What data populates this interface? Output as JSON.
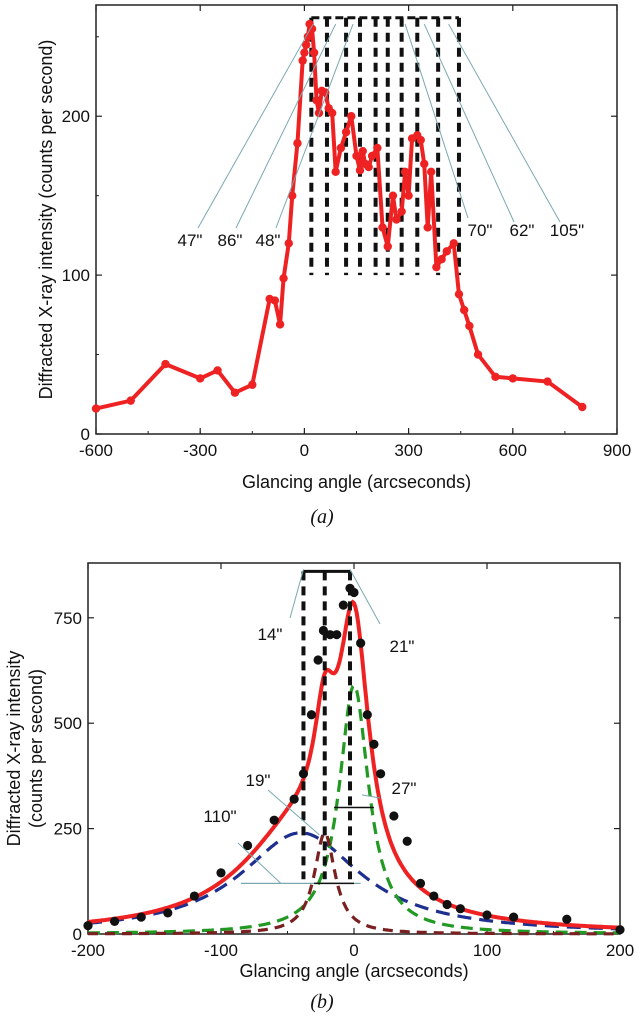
{
  "chart_data": [
    {
      "panel_label": "(a)",
      "type": "line",
      "xlabel": "Glancing angle (arcseconds)",
      "ylabel": "Diffracted X-ray intensity (counts per second)",
      "xlim": [
        -600,
        900
      ],
      "ylim": [
        0,
        270
      ],
      "xticks": [
        -600,
        -300,
        0,
        300,
        600,
        900
      ],
      "yticks": [
        0,
        100,
        200
      ],
      "grid": false,
      "series": [
        {
          "color": "#ee2222",
          "x": [
            -600,
            -500,
            -400,
            -300,
            -250,
            -200,
            -150,
            -100,
            -85,
            -70,
            -60,
            -45,
            -35,
            -20,
            -5,
            0,
            5,
            10,
            15,
            22,
            28,
            35,
            42,
            50,
            60,
            70,
            80,
            90,
            105,
            120,
            135,
            150,
            160,
            168,
            175,
            185,
            195,
            210,
            225,
            240,
            255,
            265,
            280,
            290,
            300,
            310,
            325,
            335,
            345,
            355,
            365,
            380,
            395,
            410,
            430,
            445,
            460,
            475,
            500,
            550,
            600,
            700,
            800
          ],
          "y": [
            16,
            21,
            44,
            35,
            40,
            26,
            31,
            85,
            84,
            69,
            98,
            120,
            150,
            183,
            235,
            240,
            245,
            250,
            258,
            255,
            240,
            210,
            202,
            216,
            215,
            205,
            202,
            165,
            180,
            190,
            200,
            175,
            166,
            178,
            170,
            168,
            175,
            180,
            130,
            118,
            150,
            135,
            140,
            165,
            150,
            186,
            188,
            185,
            170,
            130,
            165,
            105,
            110,
            115,
            120,
            88,
            78,
            68,
            50,
            36,
            35,
            33,
            17
          ]
        }
      ],
      "bracket_widths": [
        "47\"",
        "86\"",
        "48\"",
        "70\"",
        "62\"",
        "105\""
      ],
      "bracket_x": [
        20,
        65,
        120,
        160,
        205,
        240,
        280,
        325,
        385,
        445
      ]
    },
    {
      "panel_label": "(b)",
      "type": "line",
      "xlabel": "Glancing angle (arcseconds)",
      "ylabel": "Diffracted X-ray intensity (counts per second)",
      "xlim": [
        -200,
        200
      ],
      "ylim": [
        0,
        880
      ],
      "xticks": [
        -200,
        -100,
        0,
        100,
        200
      ],
      "yticks": [
        0,
        250,
        500,
        750
      ],
      "grid": false,
      "points": {
        "color": "#111111",
        "x": [
          -200,
          -180,
          -160,
          -140,
          -120,
          -100,
          -80,
          -60,
          -45,
          -38,
          -32,
          -27,
          -23,
          -18,
          -13,
          -8,
          -3,
          0,
          5,
          10,
          15,
          20,
          30,
          40,
          50,
          60,
          70,
          80,
          100,
          120,
          160,
          200
        ],
        "y": [
          20,
          30,
          40,
          50,
          90,
          145,
          210,
          270,
          320,
          380,
          520,
          650,
          720,
          710,
          710,
          780,
          820,
          810,
          690,
          520,
          450,
          380,
          280,
          220,
          120,
          90,
          70,
          60,
          45,
          40,
          35,
          10
        ]
      },
      "curves": [
        {
          "name": "fit",
          "color": "#ee2222",
          "shape": "lorentzian-sum"
        },
        {
          "name": "c110",
          "color": "#1f2f8f",
          "center": -40,
          "fwhm": 110,
          "amp": 240
        },
        {
          "name": "c27",
          "color": "#229922",
          "center": 0,
          "fwhm": 27,
          "amp": 590
        },
        {
          "name": "c19",
          "color": "#7a2020",
          "center": -22,
          "fwhm": 19,
          "amp": 240
        }
      ],
      "bracket_widths": [
        "14\"",
        "21\"",
        "19\"",
        "27\"",
        "110\""
      ],
      "bracket_x": [
        -38,
        -22,
        -3
      ]
    }
  ]
}
